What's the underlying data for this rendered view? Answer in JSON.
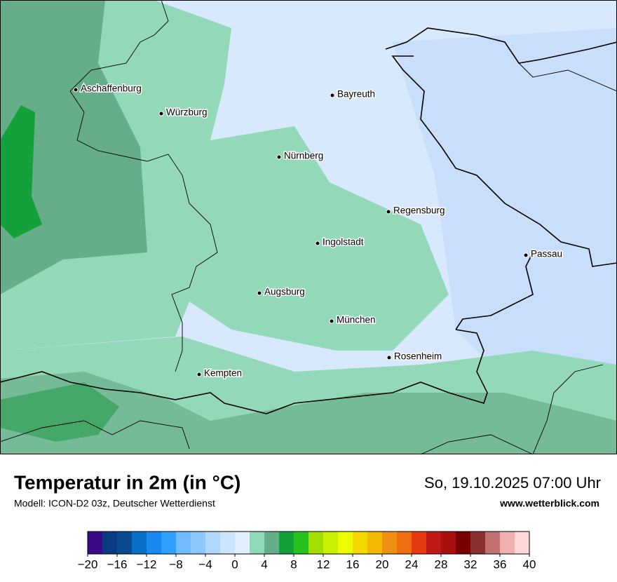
{
  "map": {
    "cities": [
      "Aschaffenburg",
      "Würzburg",
      "Bayreuth",
      "Nürnberg",
      "Regensburg",
      "Ingolstadt",
      "Passau",
      "Augsburg",
      "München",
      "Rosenheim",
      "Kempten"
    ]
  },
  "header": {
    "title": "Temperatur in 2m (in °C)",
    "model": "Modell: ICON-D2 03z, Deutscher Wetterdienst",
    "datetime": "So, 19.10.2025 07:00 Uhr",
    "website": "www.wetterblick.com"
  },
  "colorbar": {
    "bins": [
      -20,
      -18,
      -16,
      -14,
      -12,
      -10,
      -8,
      -6,
      -4,
      -2,
      0,
      2,
      4,
      6,
      8,
      10,
      12,
      14,
      16,
      18,
      20,
      22,
      24,
      26,
      28,
      30,
      32,
      34,
      36,
      38,
      40
    ],
    "colors": [
      "#3a0a8a",
      "#0a3a80",
      "#0a4a90",
      "#0870c8",
      "#1a88f0",
      "#2fa0ff",
      "#70bcff",
      "#8ec8fa",
      "#b0d8fc",
      "#cce4fc",
      "#e0efff",
      "#8fd8b8",
      "#66ad8a",
      "#14a03a",
      "#28c01e",
      "#a0e000",
      "#c8f000",
      "#eefc00",
      "#f4d800",
      "#f3b800",
      "#f09010",
      "#ef6c10",
      "#e63a10",
      "#c01818",
      "#a81010",
      "#7a0000",
      "#8a3030",
      "#c07070",
      "#f0b0b0",
      "#ffd8d8"
    ],
    "ticks": [
      {
        "value": -20,
        "label": "−20"
      },
      {
        "value": -16,
        "label": "−16"
      },
      {
        "value": -12,
        "label": "−12"
      },
      {
        "value": -8,
        "label": "−8"
      },
      {
        "value": -4,
        "label": "−4"
      },
      0,
      4,
      8,
      12,
      16,
      20,
      24,
      28,
      32,
      36,
      40
    ]
  }
}
